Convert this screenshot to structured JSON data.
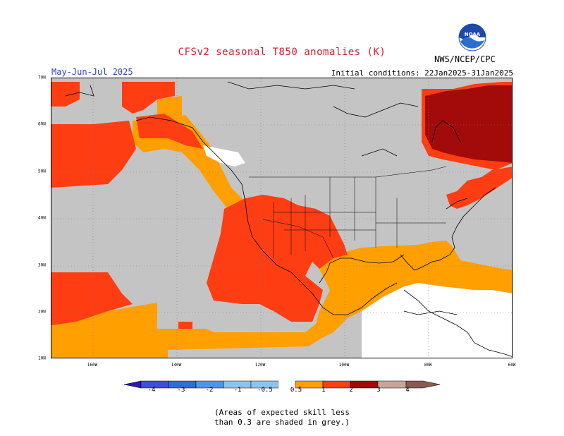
{
  "header": {
    "title": "CFSv2 seasonal T850 anomalies (K)",
    "season": "May-Jun-Jul 2025",
    "initial_conditions": "Initial conditions: 22Jan2025-31Jan2025",
    "agency": "NWS/NCEP/CPC",
    "logo_text": "NOAA"
  },
  "map": {
    "lat_labels": [
      "70N",
      "60N",
      "50N",
      "40N",
      "30N",
      "20N",
      "10N"
    ],
    "lon_labels": [
      "160W",
      "140W",
      "120W",
      "100W",
      "80W",
      "60W"
    ]
  },
  "colorbar": {
    "labels": [
      "-4",
      "-3",
      "-2",
      "-1",
      "-0.5",
      "0.5",
      "1",
      "2",
      "3",
      "4"
    ],
    "colors": [
      "#3018a8",
      "#3f4fd8",
      "#2a70d8",
      "#4a98ec",
      "#8cc4f0",
      "#ffffff",
      "#ff9f00",
      "#ff3d13",
      "#a30a0a",
      "#c8a59b",
      "#8a5a50"
    ],
    "grey_color": "#c4c4c4"
  },
  "note": {
    "line1": "(Areas of expected skill less",
    "line2": "than 0.3 are shaded in grey.)"
  }
}
